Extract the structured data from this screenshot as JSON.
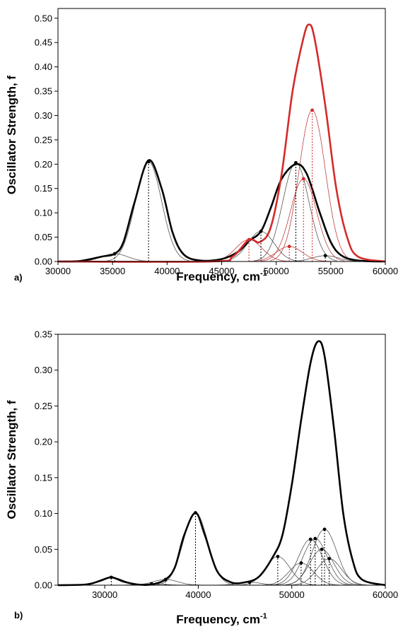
{
  "chart_data": [
    {
      "panel_label": "a)",
      "type": "line",
      "xlabel": "Frequency, cm",
      "xlabel_sup": "-1",
      "ylabel": "Oscillator Strength, f",
      "xlim": [
        30000,
        60000
      ],
      "ylim": [
        0,
        0.52
      ],
      "xticks": [
        30000,
        35000,
        40000,
        45000,
        50000,
        55000,
        60000
      ],
      "yticks": [
        0.0,
        0.05,
        0.1,
        0.15,
        0.2,
        0.25,
        0.3,
        0.35,
        0.4,
        0.45,
        0.5
      ],
      "xtick_labels": [
        "30000",
        "35000",
        "40000",
        "45000",
        "50000",
        "55000",
        "60000"
      ],
      "ytick_labels": [
        "0.00",
        "0.05",
        "0.10",
        "0.15",
        "0.20",
        "0.25",
        "0.30",
        "0.35",
        "0.40",
        "0.45",
        "0.50"
      ],
      "colors": {
        "black": "#000000",
        "red": "#d42a2a",
        "component_black": "#555555",
        "component_red": "#c04040"
      },
      "series": [
        {
          "color": "black",
          "style": "envelope",
          "x": [
            30000,
            32000,
            34000,
            35200,
            36000,
            37000,
            38300,
            39500,
            40500,
            41500,
            43000,
            45000,
            46500,
            47500,
            48600,
            49500,
            50500,
            51800,
            52800,
            54000,
            55000,
            56000,
            57500,
            60000
          ],
          "y": [
            0,
            0.001,
            0.01,
            0.016,
            0.04,
            0.12,
            0.208,
            0.15,
            0.06,
            0.015,
            0.002,
            0.005,
            0.02,
            0.042,
            0.062,
            0.11,
            0.17,
            0.2,
            0.18,
            0.1,
            0.04,
            0.012,
            0.002,
            0
          ]
        },
        {
          "color": "red",
          "style": "envelope",
          "x": [
            30000,
            44000,
            46000,
            47500,
            48500,
            49500,
            50500,
            51500,
            52500,
            53000,
            53500,
            54500,
            55500,
            56500,
            57500,
            60000
          ],
          "y": [
            0,
            0,
            0.01,
            0.045,
            0.04,
            0.07,
            0.18,
            0.35,
            0.46,
            0.487,
            0.46,
            0.32,
            0.15,
            0.05,
            0.01,
            0
          ]
        }
      ],
      "sticks": [
        {
          "color": "black",
          "x": 35200,
          "f": 0.016
        },
        {
          "color": "black",
          "x": 38300,
          "f": 0.205
        },
        {
          "color": "black",
          "x": 48600,
          "f": 0.062
        },
        {
          "color": "black",
          "x": 51800,
          "f": 0.203
        },
        {
          "color": "black",
          "x": 54500,
          "f": 0.012
        },
        {
          "color": "red",
          "x": 47500,
          "f": 0.045
        },
        {
          "color": "red",
          "x": 51200,
          "f": 0.031
        },
        {
          "color": "red",
          "x": 52500,
          "f": 0.17
        },
        {
          "color": "red",
          "x": 53300,
          "f": 0.311
        }
      ]
    },
    {
      "panel_label": "b)",
      "type": "line",
      "xlabel": "Frequency, cm",
      "xlabel_sup": "-1",
      "ylabel": "Oscillator Strength, f",
      "xlim": [
        25000,
        60000
      ],
      "ylim": [
        0,
        0.35
      ],
      "xticks": [
        30000,
        40000,
        50000,
        60000
      ],
      "yticks": [
        0.0,
        0.05,
        0.1,
        0.15,
        0.2,
        0.25,
        0.3,
        0.35
      ],
      "xtick_labels": [
        "30000",
        "40000",
        "50000",
        "60000"
      ],
      "ytick_labels": [
        "0.00",
        "0.05",
        "0.10",
        "0.15",
        "0.20",
        "0.25",
        "0.30",
        "0.35"
      ],
      "colors": {
        "black": "#000000",
        "component_black": "#555555"
      },
      "series": [
        {
          "color": "black",
          "style": "envelope",
          "x": [
            25000,
            28000,
            29500,
            30700,
            32000,
            33500,
            35000,
            36500,
            37500,
            38500,
            39700,
            40700,
            42000,
            43500,
            45000,
            46500,
            48000,
            49000,
            50000,
            51000,
            52000,
            52800,
            53500,
            54500,
            55500,
            56500,
            57500,
            60000
          ],
          "y": [
            0,
            0.001,
            0.006,
            0.011,
            0.005,
            0.001,
            0.001,
            0.008,
            0.025,
            0.07,
            0.101,
            0.07,
            0.02,
            0.004,
            0.004,
            0.012,
            0.04,
            0.07,
            0.14,
            0.23,
            0.31,
            0.34,
            0.32,
            0.22,
            0.1,
            0.035,
            0.008,
            0
          ]
        }
      ],
      "sticks": [
        {
          "color": "black",
          "x": 30700,
          "f": 0.011
        },
        {
          "color": "black",
          "x": 35000,
          "f": 0.002
        },
        {
          "color": "black",
          "x": 36500,
          "f": 0.008
        },
        {
          "color": "black",
          "x": 39700,
          "f": 0.101
        },
        {
          "color": "black",
          "x": 45500,
          "f": 0.004
        },
        {
          "color": "black",
          "x": 48500,
          "f": 0.04
        },
        {
          "color": "black",
          "x": 51000,
          "f": 0.031
        },
        {
          "color": "black",
          "x": 52000,
          "f": 0.064
        },
        {
          "color": "black",
          "x": 52500,
          "f": 0.065
        },
        {
          "color": "black",
          "x": 53200,
          "f": 0.05
        },
        {
          "color": "black",
          "x": 53500,
          "f": 0.078
        },
        {
          "color": "black",
          "x": 54000,
          "f": 0.037
        }
      ]
    }
  ]
}
